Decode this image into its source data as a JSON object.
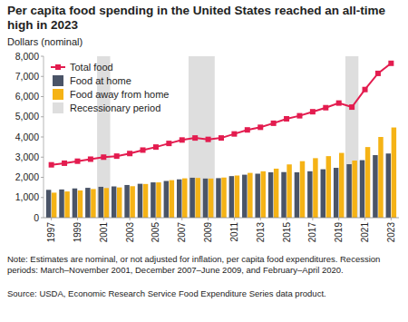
{
  "chart_data": {
    "type": "bar",
    "title": "Per capita food spending in the United States reached an all-time high in 2023",
    "y_label": "Dollars (nominal)",
    "note": "Note: Estimates are nominal, or not adjusted for inflation, per capita food expenditures. Recession periods: March–November 2001, December 2007–June 2009, and February–April 2020.",
    "source": "Source: USDA, Economic Research Service Food Expenditure Series data product.",
    "x": [
      1997,
      1998,
      1999,
      2000,
      2001,
      2002,
      2003,
      2004,
      2005,
      2006,
      2007,
      2008,
      2009,
      2010,
      2011,
      2012,
      2013,
      2014,
      2015,
      2016,
      2017,
      2018,
      2019,
      2020,
      2021,
      2022,
      2023
    ],
    "xlim": [
      1996.4,
      2023.6
    ],
    "xticks": [
      1997,
      1999,
      2001,
      2003,
      2005,
      2007,
      2009,
      2011,
      2013,
      2015,
      2017,
      2019,
      2021,
      2023
    ],
    "ylim": [
      0,
      8000
    ],
    "yticks": [
      0,
      {
        "value": 1000,
        "label": "1,000"
      },
      {
        "value": 2000,
        "label": "2,000"
      },
      {
        "value": 3000,
        "label": "3,000"
      },
      {
        "value": 4000,
        "label": "4,000"
      },
      {
        "value": 5000,
        "label": "5,000"
      },
      {
        "value": 6000,
        "label": "6,000"
      },
      {
        "value": 7000,
        "label": "7,000"
      },
      {
        "value": 8000,
        "label": "8,000"
      }
    ],
    "grid": false,
    "legend": "top-left",
    "series": [
      {
        "name": "Total food",
        "type": "line",
        "marker": "square",
        "color": "#e31c4f",
        "values": [
          2620,
          2700,
          2800,
          2900,
          3000,
          3050,
          3180,
          3350,
          3500,
          3680,
          3850,
          3950,
          3880,
          3950,
          4150,
          4350,
          4480,
          4680,
          4900,
          5050,
          5250,
          5450,
          5680,
          5480,
          6350,
          7150,
          7650
        ]
      },
      {
        "name": "Food at home",
        "type": "bar",
        "color": "#4a5467",
        "values": [
          1380,
          1400,
          1450,
          1480,
          1530,
          1550,
          1620,
          1680,
          1750,
          1820,
          1900,
          1980,
          1940,
          1960,
          2060,
          2130,
          2180,
          2250,
          2260,
          2250,
          2300,
          2400,
          2470,
          2650,
          2850,
          3100,
          3180
        ]
      },
      {
        "name": "Food away from home",
        "type": "bar",
        "color": "#f5b316",
        "values": [
          1240,
          1300,
          1350,
          1420,
          1470,
          1500,
          1560,
          1670,
          1750,
          1860,
          1950,
          1970,
          1940,
          1990,
          2090,
          2220,
          2300,
          2430,
          2640,
          2800,
          2950,
          3050,
          3210,
          2830,
          3500,
          4000,
          4470
        ]
      }
    ],
    "recessions": {
      "name": "Recessionary period",
      "color": "#dedede",
      "ranges": [
        [
          2001,
          2001
        ],
        [
          2008,
          2009
        ],
        [
          2020,
          2020
        ]
      ]
    }
  }
}
